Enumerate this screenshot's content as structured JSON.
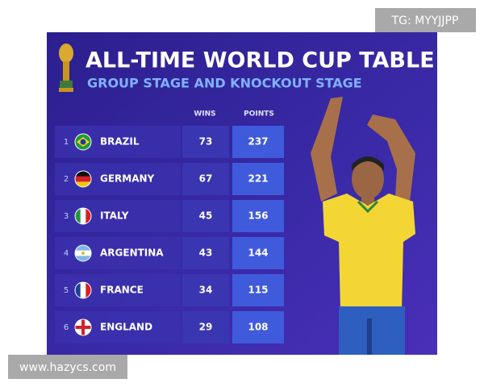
{
  "watermark_top": "TG: MYYJJPP",
  "watermark_bottom": "www.hazycs.com",
  "header": {
    "title": "ALL-TIME WORLD CUP TABLE",
    "subtitle": "GROUP STAGE AND KNOCKOUT STAGE"
  },
  "table": {
    "columns": [
      "WINS",
      "POINTS"
    ],
    "rows": [
      {
        "rank": "1",
        "country": "BRAZIL",
        "wins": "73",
        "points": "237"
      },
      {
        "rank": "2",
        "country": "GERMANY",
        "wins": "67",
        "points": "221"
      },
      {
        "rank": "3",
        "country": "ITALY",
        "wins": "45",
        "points": "156"
      },
      {
        "rank": "4",
        "country": "ARGENTINA",
        "wins": "43",
        "points": "144"
      },
      {
        "rank": "5",
        "country": "FRANCE",
        "wins": "34",
        "points": "115"
      },
      {
        "rank": "6",
        "country": "ENGLAND",
        "wins": "29",
        "points": "108"
      }
    ]
  }
}
